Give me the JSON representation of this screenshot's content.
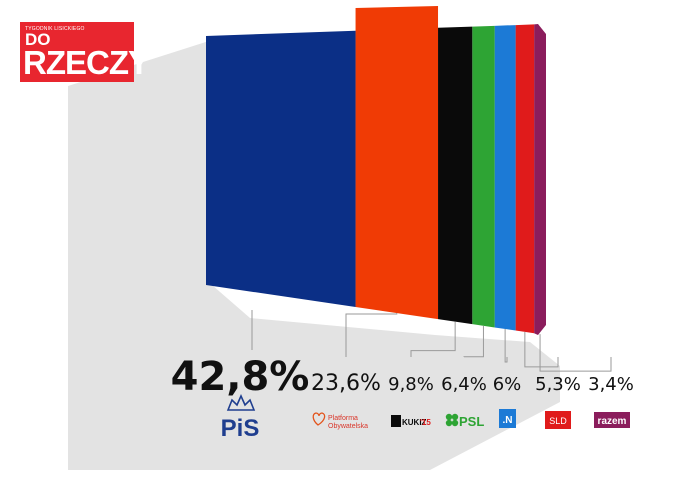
{
  "brand": {
    "small_text": "TYGODNIK LISICKIEGO",
    "do_text": "DO",
    "main_text": "RZECZY"
  },
  "colors": {
    "pis": "#0b2f86",
    "po": "#f03b05",
    "kukiz": "#0a0a0a",
    "psl": "#2ea434",
    "nowoczesna": "#1c7ad6",
    "sld": "#e01b1b",
    "razem": "#8b1d5c",
    "shadow": "#e3e3e3"
  },
  "chart_data": {
    "type": "bar",
    "categories": [
      "PiS",
      "Platforma Obywatelska",
      "Kukiz'15",
      "PSL",
      ".N",
      "SLD",
      "razem"
    ],
    "values": [
      42.8,
      23.6,
      9.8,
      6.4,
      6,
      5.3,
      3.4
    ],
    "value_labels": [
      "42,8%",
      "23,6%",
      "9,8%",
      "6,4%",
      "6%",
      "5,3%",
      "3,4%"
    ],
    "logos": {
      "pis": "PiS",
      "po_line1": "Platforma",
      "po_line2": "Obywatelska",
      "kukiz_a": "KUKIZ",
      "kukiz_b": "'15",
      "psl": "PSL",
      "n": ".N",
      "sld": "SLD",
      "razem": "razem"
    }
  }
}
